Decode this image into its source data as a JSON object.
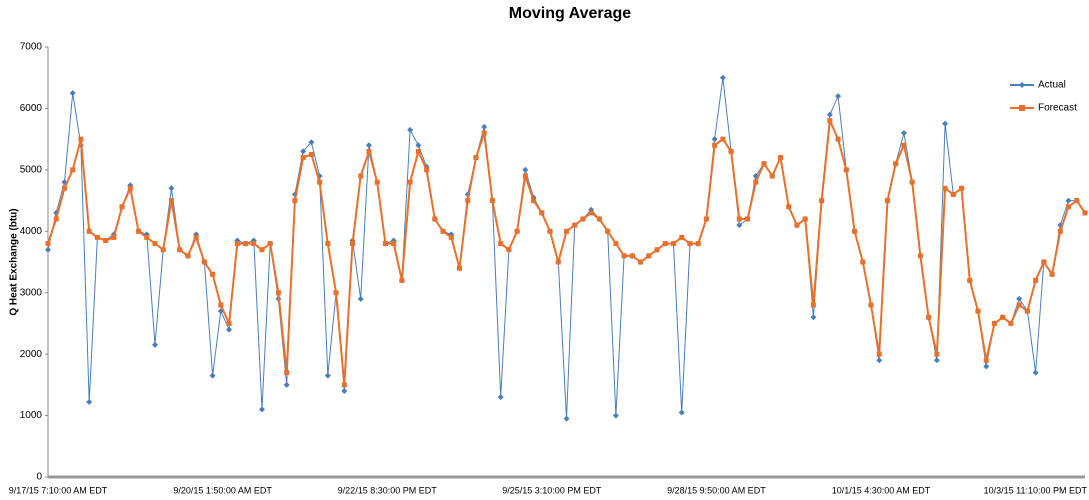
{
  "chart_data": {
    "type": "line",
    "title": "Moving Average",
    "y_label": "Q Heat Exchange (btu)",
    "categories": [
      "9/17/15 7:10:00 AM EDT",
      null,
      null,
      null,
      null,
      null,
      null,
      null,
      null,
      null,
      null,
      null,
      null,
      null,
      null,
      null,
      null,
      null,
      null,
      null,
      "9/20/15 1:50:00 AM EDT",
      null,
      null,
      null,
      null,
      null,
      null,
      null,
      null,
      null,
      null,
      null,
      null,
      null,
      null,
      null,
      null,
      null,
      null,
      null,
      "9/22/15 8:30:00 PM EDT",
      null,
      null,
      null,
      null,
      null,
      null,
      null,
      null,
      null,
      null,
      null,
      null,
      null,
      null,
      null,
      null,
      null,
      null,
      null,
      "9/25/15 3:10:00 PM EDT",
      null,
      null,
      null,
      null,
      null,
      null,
      null,
      null,
      null,
      null,
      null,
      null,
      null,
      null,
      null,
      null,
      null,
      null,
      null,
      "9/28/15 9:50:00 AM EDT",
      null,
      null,
      null,
      null,
      null,
      null,
      null,
      null,
      null,
      null,
      null,
      null,
      null,
      null,
      null,
      null,
      null,
      null,
      null,
      "10/1/15 4:30:00 AM EDT",
      null,
      null,
      null,
      null,
      null,
      null,
      null,
      null,
      null,
      null,
      null,
      null,
      null,
      null,
      null,
      null,
      null,
      null,
      null,
      "10/3/15 11:10:00 PM EDT",
      null,
      null,
      null,
      null,
      null,
      null
    ],
    "series": [
      {
        "name": "Actual",
        "color": "#4a7ebb",
        "values": [
          3700,
          4300,
          4800,
          6250,
          5400,
          1220,
          3900,
          3850,
          3950,
          4400,
          4750,
          4000,
          3950,
          2150,
          3700,
          4700,
          3700,
          3600,
          3950,
          3500,
          1650,
          2700,
          2400,
          3850,
          3800,
          3850,
          1100,
          3800,
          2900,
          1500,
          4600,
          5300,
          5450,
          4900,
          1650,
          3000,
          1400,
          3850,
          2900,
          5400,
          4800,
          3800,
          3850,
          3200,
          5650,
          5400,
          5050,
          4200,
          4000,
          3950,
          3400,
          4600,
          5200,
          5700,
          4500,
          1300,
          3700,
          4000,
          5000,
          4550,
          4300,
          4000,
          3500,
          950,
          4100,
          4200,
          4350,
          4200,
          4000,
          1000,
          3600,
          3600,
          3500,
          3600,
          3700,
          3800,
          3800,
          1050,
          3800,
          3800,
          4200,
          5500,
          6500,
          5300,
          4100,
          4200,
          4900,
          5100,
          4900,
          5200,
          4400,
          4100,
          4200,
          2600,
          4500,
          5900,
          6200,
          5000,
          4000,
          3500,
          2800,
          1900,
          4500,
          5100,
          5600,
          4800,
          3600,
          2600,
          1900,
          5750,
          4600,
          4700,
          3200,
          2700,
          1800,
          2500,
          2600,
          2500,
          2900,
          2700,
          1700,
          3500,
          3300,
          4100,
          4500,
          4500,
          4300
        ]
      },
      {
        "name": "Forecast",
        "color": "#e8702a",
        "values": [
          3800,
          4200,
          4700,
          5000,
          5500,
          4000,
          3900,
          3850,
          3900,
          4400,
          4700,
          4000,
          3900,
          3800,
          3700,
          4500,
          3700,
          3600,
          3900,
          3500,
          3300,
          2800,
          2500,
          3800,
          3800,
          3800,
          3700,
          3800,
          3000,
          1700,
          4500,
          5200,
          5250,
          4800,
          3800,
          3000,
          1500,
          3800,
          4900,
          5300,
          4800,
          3800,
          3800,
          3200,
          4800,
          5300,
          5000,
          4200,
          4000,
          3900,
          3400,
          4500,
          5200,
          5600,
          4500,
          3800,
          3700,
          4000,
          4900,
          4500,
          4300,
          4000,
          3500,
          4000,
          4100,
          4200,
          4300,
          4200,
          4000,
          3800,
          3600,
          3600,
          3500,
          3600,
          3700,
          3800,
          3800,
          3900,
          3800,
          3800,
          4200,
          5400,
          5500,
          5300,
          4200,
          4200,
          4800,
          5100,
          4900,
          5200,
          4400,
          4100,
          4200,
          2800,
          4500,
          5800,
          5500,
          5000,
          4000,
          3500,
          2800,
          2000,
          4500,
          5100,
          5400,
          4800,
          3600,
          2600,
          2000,
          4700,
          4600,
          4700,
          3200,
          2700,
          1900,
          2500,
          2600,
          2500,
          2800,
          2700,
          3200,
          3500,
          3300,
          4000,
          4400,
          4500,
          4300
        ]
      }
    ],
    "ylim": [
      0,
      7000
    ],
    "yticks": [
      0,
      1000,
      2000,
      3000,
      4000,
      5000,
      6000,
      7000
    ],
    "legend": "right"
  }
}
